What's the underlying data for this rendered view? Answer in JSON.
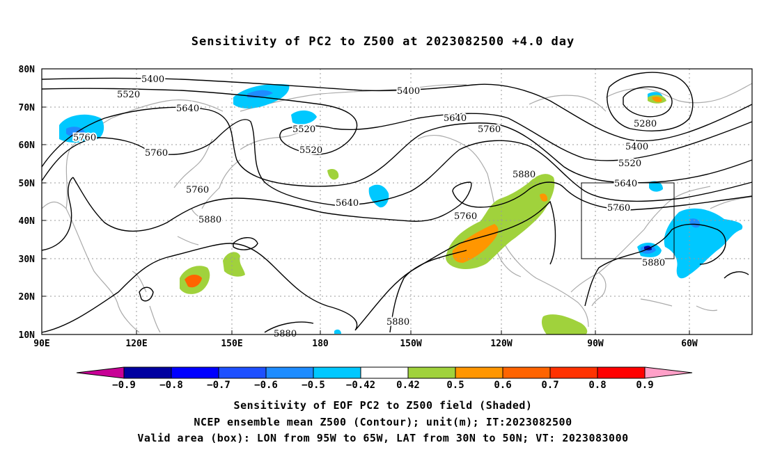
{
  "title": "Sensitivity of PC2 to Z500 at 2023082500 +4.0 day",
  "lat_labels": [
    "80N",
    "70N",
    "60N",
    "50N",
    "40N",
    "30N",
    "20N",
    "10N"
  ],
  "lon_labels": [
    "90E",
    "120E",
    "150E",
    "180",
    "150W",
    "120W",
    "90W",
    "60W"
  ],
  "contour_labels": [
    {
      "text": "5400"
    },
    {
      "text": "5520"
    },
    {
      "text": "5640"
    },
    {
      "text": "5760"
    },
    {
      "text": "5760"
    },
    {
      "text": "5520"
    },
    {
      "text": "5520"
    },
    {
      "text": "5400"
    },
    {
      "text": "5640"
    },
    {
      "text": "5760"
    },
    {
      "text": "5760"
    },
    {
      "text": "5880"
    },
    {
      "text": "5640"
    },
    {
      "text": "5760"
    },
    {
      "text": "5880"
    },
    {
      "text": "5280"
    },
    {
      "text": "5400"
    },
    {
      "text": "5520"
    },
    {
      "text": "5640"
    },
    {
      "text": "5760"
    },
    {
      "text": "5880"
    },
    {
      "text": "5880"
    },
    {
      "text": "5880"
    }
  ],
  "colorbar": {
    "labels": [
      "-0.9",
      "-0.8",
      "-0.7",
      "-0.6",
      "-0.5",
      "-0.42",
      "0.42",
      "0.5",
      "0.6",
      "0.7",
      "0.8",
      "0.9"
    ],
    "colors": [
      "#0000a0",
      "#0000ff",
      "#1e50ff",
      "#1e8cff",
      "#00c8ff",
      "#ffffff",
      "#a0d23c",
      "#ff9600",
      "#ff6400",
      "#ff3200",
      "#ff0000"
    ],
    "low_end_color": "#c80096",
    "high_end_color": "#ffa0c8"
  },
  "valid_box": {
    "lon_from": "95W",
    "lon_to": "65W",
    "lat_from": "30N",
    "lat_to": "50N"
  },
  "captions": [
    "Sensitivity of EOF PC2 to Z500 field (Shaded)",
    "NCEP ensemble mean Z500 (Contour); unit(m); IT:2023082500",
    "Valid area (box): LON from 95W to 65W, LAT from 30N to 50N; VT: 2023083000"
  ]
}
